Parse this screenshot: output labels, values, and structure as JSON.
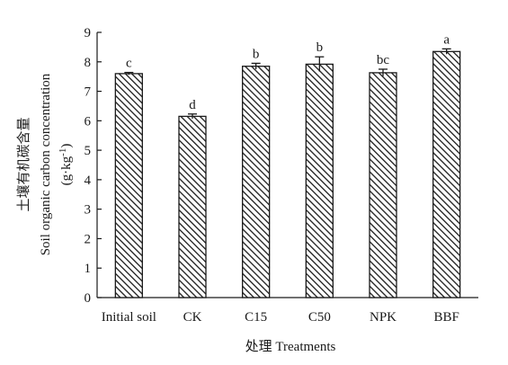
{
  "chart_data": {
    "type": "bar",
    "categories": [
      "Initial soil",
      "CK",
      "C15",
      "C50",
      "NPK",
      "BBF"
    ],
    "values": [
      7.6,
      6.15,
      7.85,
      7.92,
      7.63,
      8.35
    ],
    "errors": [
      0.04,
      0.08,
      0.1,
      0.25,
      0.12,
      0.09
    ],
    "significance": [
      "c",
      "d",
      "b",
      "b",
      "bc",
      "a"
    ],
    "xlabel": "处理 Treatments",
    "ylabel_cn": "土壤有机碳含量",
    "ylabel_en": "Soil organic carbon concentration",
    "ylabel_unit_base": "(g·kg",
    "ylabel_unit_sup": "-1",
    "ylabel_unit_end": ")",
    "ylim": [
      0,
      9
    ],
    "yticks": [
      "0",
      "1",
      "2",
      "3",
      "4",
      "5",
      "6",
      "7",
      "8",
      "9"
    ],
    "grid": false,
    "bar_pattern": "diagonal-hatch",
    "colors": {
      "bar_fill": "#ffffff",
      "hatch": "#1a1a1a",
      "axis": "#1a1a1a"
    }
  }
}
